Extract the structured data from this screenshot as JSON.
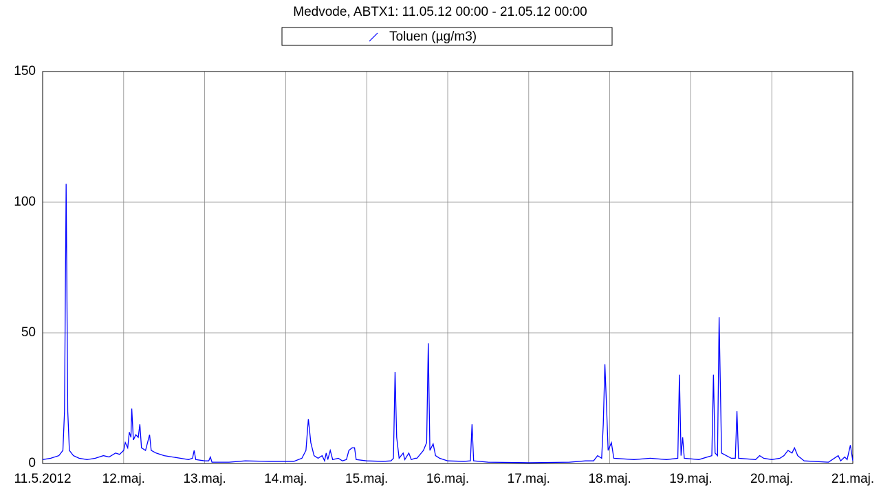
{
  "chart_data": {
    "type": "line",
    "title": "Medvode, ABTX1: 11.05.12 00:00 - 21.05.12 00:00",
    "series": [
      {
        "name": "Toluen (µg/m3)",
        "color": "#0000ff",
        "x": [
          0,
          0.1,
          0.2,
          0.25,
          0.27,
          0.29,
          0.31,
          0.33,
          0.38,
          0.45,
          0.55,
          0.65,
          0.75,
          0.82,
          0.9,
          0.95,
          1.0,
          1.02,
          1.05,
          1.07,
          1.09,
          1.1,
          1.12,
          1.15,
          1.18,
          1.2,
          1.22,
          1.27,
          1.32,
          1.34,
          1.4,
          1.5,
          1.6,
          1.7,
          1.8,
          1.85,
          1.87,
          1.89,
          2.0,
          2.05,
          2.07,
          2.09,
          2.3,
          2.5,
          2.8,
          3.0,
          3.1,
          3.2,
          3.25,
          3.28,
          3.31,
          3.35,
          3.4,
          3.45,
          3.48,
          3.5,
          3.52,
          3.55,
          3.58,
          3.65,
          3.7,
          3.75,
          3.78,
          3.82,
          3.85,
          3.87,
          4.0,
          4.2,
          4.3,
          4.33,
          4.35,
          4.37,
          4.4,
          4.45,
          4.47,
          4.52,
          4.55,
          4.6,
          4.62,
          4.7,
          4.74,
          4.76,
          4.78,
          4.82,
          4.85,
          4.9,
          5.0,
          5.2,
          5.28,
          5.3,
          5.32,
          5.5,
          6.0,
          6.5,
          6.7,
          6.8,
          6.85,
          6.9,
          6.92,
          6.94,
          6.96,
          6.98,
          7.02,
          7.05,
          7.3,
          7.5,
          7.7,
          7.84,
          7.86,
          7.88,
          7.9,
          7.92,
          8.1,
          8.26,
          8.28,
          8.3,
          8.33,
          8.35,
          8.38,
          8.5,
          8.55,
          8.57,
          8.59,
          8.8,
          8.85,
          8.9,
          9.0,
          9.1,
          9.15,
          9.2,
          9.25,
          9.28,
          9.32,
          9.4,
          9.7,
          9.82,
          9.85,
          9.9,
          9.93,
          9.97,
          10
        ],
        "values": [
          1.5,
          2,
          3,
          5,
          20,
          107,
          20,
          5,
          3,
          2,
          1.5,
          2,
          3,
          2.5,
          4,
          3.5,
          5,
          8,
          6,
          12,
          10,
          21,
          9,
          11,
          10,
          15,
          6,
          5,
          11,
          5,
          4,
          3,
          2.5,
          2,
          1.5,
          2,
          5,
          1.5,
          1,
          1,
          2.5,
          0.5,
          0.5,
          1,
          0.8,
          0.8,
          0.8,
          2,
          5,
          17,
          8,
          3,
          2,
          3,
          1,
          4,
          1.5,
          5,
          1.5,
          2,
          1,
          1.5,
          5,
          6,
          6,
          1.5,
          1,
          0.8,
          1,
          2,
          35,
          10,
          2,
          4,
          1.5,
          4,
          1.5,
          2,
          2,
          5,
          8,
          46,
          5,
          7.5,
          3,
          2,
          1,
          0.8,
          1,
          15,
          1,
          0.5,
          0.3,
          0.5,
          1,
          1,
          3,
          2,
          15,
          38,
          22,
          5,
          8,
          2,
          1.5,
          2,
          1.5,
          2,
          34,
          3,
          10,
          2,
          1.5,
          3,
          34,
          4,
          3,
          56,
          4,
          2,
          2,
          20,
          2,
          1.5,
          3,
          2,
          1.5,
          2,
          3,
          5,
          4,
          6,
          3,
          1,
          0.5,
          3,
          1,
          2.5,
          1.5,
          7,
          1
        ]
      }
    ],
    "xlim": [
      0,
      10
    ],
    "xticks": [
      {
        "value": 0,
        "label": "11.5.2012"
      },
      {
        "value": 1,
        "label": "12.maj."
      },
      {
        "value": 2,
        "label": "13.maj."
      },
      {
        "value": 3,
        "label": "14.maj."
      },
      {
        "value": 4,
        "label": "15.maj."
      },
      {
        "value": 5,
        "label": "16.maj."
      },
      {
        "value": 6,
        "label": "17.maj."
      },
      {
        "value": 7,
        "label": "18.maj."
      },
      {
        "value": 8,
        "label": "19.maj."
      },
      {
        "value": 9,
        "label": "20.maj."
      },
      {
        "value": 10,
        "label": "21.maj."
      }
    ],
    "ylim": [
      0,
      150
    ],
    "yticks": [
      0,
      50,
      100,
      150
    ],
    "grid": true
  }
}
